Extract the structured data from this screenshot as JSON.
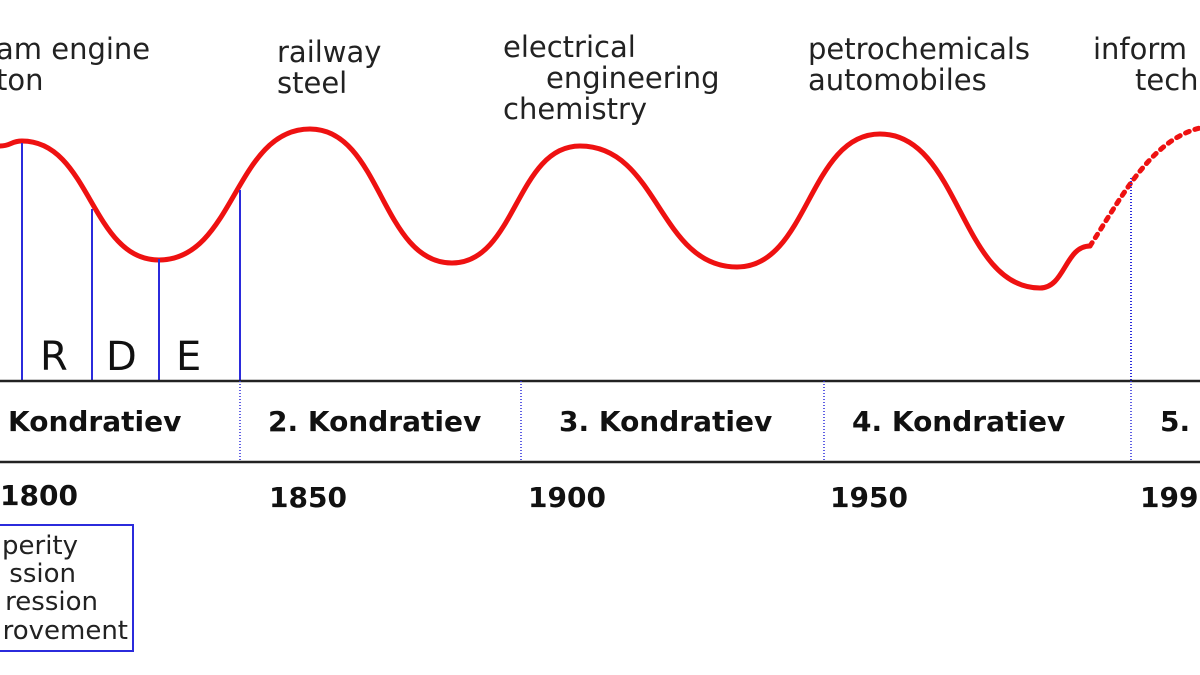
{
  "diagram": {
    "innovations": [
      {
        "line1": "am engine",
        "line2": "ton",
        "line3": ""
      },
      {
        "line1": "railway",
        "line2": "steel",
        "line3": ""
      },
      {
        "line1": "electrical",
        "line2": "engineering",
        "line3": "chemistry"
      },
      {
        "line1": "petrochemicals",
        "line2": "automobiles",
        "line3": ""
      },
      {
        "line1": "inform",
        "line2": "tech",
        "line3": ""
      }
    ],
    "phases": [
      "R",
      "D",
      "E"
    ],
    "cycles": [
      "Kondratiev",
      "2. Kondratiev",
      "3. Kondratiev",
      "4. Kondratiev",
      "5."
    ],
    "years": [
      "1800",
      "1850",
      "1900",
      "1950",
      "199"
    ],
    "legend": [
      "perity",
      "ssion",
      "ression",
      "rovement"
    ],
    "colors": {
      "wave": "#ee1111",
      "guide": "#2b2bdc",
      "axis": "#222222"
    }
  }
}
